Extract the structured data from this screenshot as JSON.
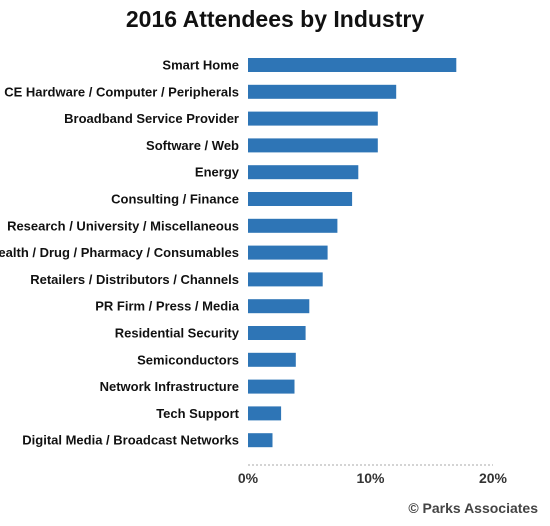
{
  "chart_data": {
    "type": "bar",
    "orientation": "horizontal",
    "title": "2016 Attendees by Industry",
    "xlabel": "",
    "ylabel": "",
    "categories": [
      "Smart Home",
      "CE Hardware / Computer / Peripherals",
      "Broadband Service Provider",
      "Software / Web",
      "Energy",
      "Consulting / Finance",
      "Research / University / Miscellaneous",
      "Health / Drug / Pharmacy / Consumables",
      "Retailers / Distributors / Channels",
      "PR Firm / Press / Media",
      "Residential Security",
      "Semiconductors",
      "Network Infrastructure",
      "Tech Support",
      "Digital Media / Broadcast Networks"
    ],
    "values": [
      17.0,
      12.1,
      10.6,
      10.6,
      9.0,
      8.5,
      7.3,
      6.5,
      6.1,
      5.0,
      4.7,
      3.9,
      3.8,
      2.7,
      2.0
    ],
    "value_unit": "%",
    "xlim": [
      0,
      20
    ],
    "xticks": [
      "0%",
      "10%",
      "20%"
    ],
    "grid": false,
    "legend": "none",
    "bar_color": "#2e75b6"
  },
  "footer": {
    "credit": "© Parks Associates"
  }
}
